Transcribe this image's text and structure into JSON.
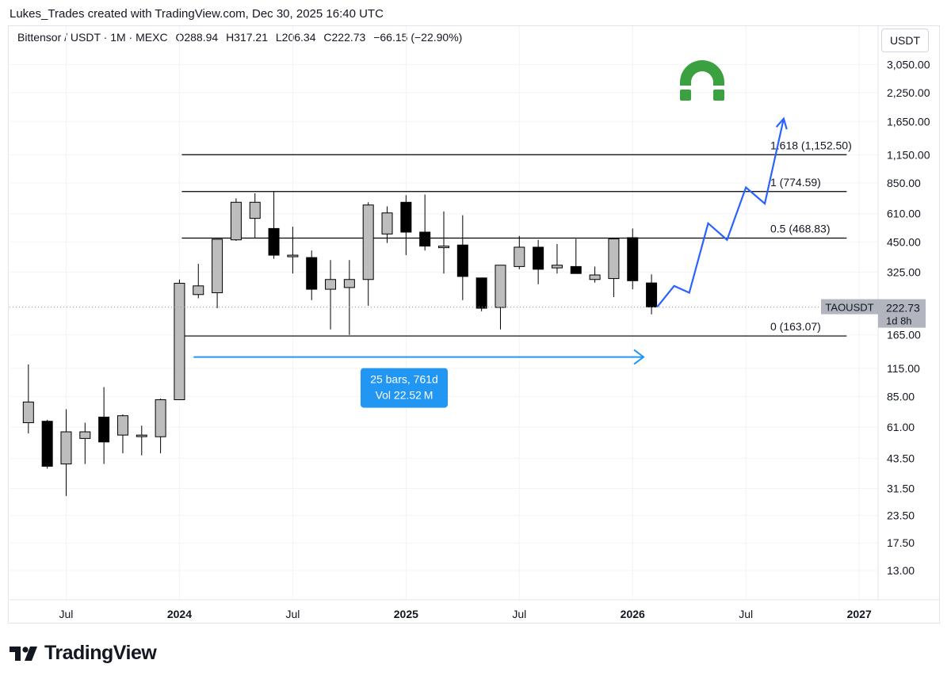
{
  "header": {
    "caption": "Lukes_Trades created with TradingView.com, Dec 30, 2025 16:40 UTC"
  },
  "legend": {
    "symbol": "Bittensor / USDT · 1M · MEXC",
    "open": "O288.94",
    "high": "H317.21",
    "low": "L206.34",
    "close": "C222.73",
    "change": "−66.15 (−22.90%)"
  },
  "currency": "USDT",
  "footer": {
    "brand": "TradingView"
  },
  "colors": {
    "bull_body": "#bdbdbd",
    "bear_body": "#000000",
    "projection": "#2962ff",
    "measure": "#2196f3",
    "logo_green": "#3aa040"
  },
  "chart_data": {
    "type": "candlestick",
    "y_scale": "log",
    "ylim": [
      10.5,
      3600
    ],
    "y_ticks": [
      "3,050.00",
      "2,250.00",
      "1,650.00",
      "1,150.00",
      "850.00",
      "610.00",
      "450.00",
      "325.00",
      "165.00",
      "115.00",
      "85.00",
      "61.00",
      "43.50",
      "31.50",
      "23.50",
      "17.50",
      "13.00"
    ],
    "y_tick_values": [
      3050,
      2250,
      1650,
      1150,
      850,
      610,
      450,
      325,
      165,
      115,
      85,
      61,
      43.5,
      31.5,
      23.5,
      17.5,
      13
    ],
    "x_start_month": "2023-04",
    "x_end_month": "2027-02",
    "x_ticks": [
      {
        "label": "Jul",
        "month": "2023-07",
        "bold": false
      },
      {
        "label": "2024",
        "month": "2024-01",
        "bold": true
      },
      {
        "label": "Jul",
        "month": "2024-07",
        "bold": false
      },
      {
        "label": "2025",
        "month": "2025-01",
        "bold": true
      },
      {
        "label": "Jul",
        "month": "2025-07",
        "bold": false
      },
      {
        "label": "2026",
        "month": "2026-01",
        "bold": true
      },
      {
        "label": "Jul",
        "month": "2026-07",
        "bold": false
      },
      {
        "label": "2027",
        "month": "2027-01",
        "bold": true
      }
    ],
    "candles": [
      {
        "month": "2023-05",
        "o": 64,
        "h": 120,
        "l": 57,
        "c": 80
      },
      {
        "month": "2023-06",
        "o": 65,
        "h": 66,
        "l": 39,
        "c": 40
      },
      {
        "month": "2023-07",
        "o": 41,
        "h": 74,
        "l": 29,
        "c": 58
      },
      {
        "month": "2023-08",
        "o": 54,
        "h": 64,
        "l": 41,
        "c": 58
      },
      {
        "month": "2023-09",
        "o": 68,
        "h": 94,
        "l": 41,
        "c": 52
      },
      {
        "month": "2023-10",
        "o": 56,
        "h": 70,
        "l": 46,
        "c": 69
      },
      {
        "month": "2023-11",
        "o": 56,
        "h": 62,
        "l": 45,
        "c": 56
      },
      {
        "month": "2023-12",
        "o": 55,
        "h": 83,
        "l": 46,
        "c": 82
      },
      {
        "month": "2024-01",
        "o": 82,
        "h": 300,
        "l": 82,
        "c": 288
      },
      {
        "month": "2024-02",
        "o": 255,
        "h": 355,
        "l": 245,
        "c": 280
      },
      {
        "month": "2024-03",
        "o": 260,
        "h": 465,
        "l": 220,
        "c": 463
      },
      {
        "month": "2024-04",
        "o": 460,
        "h": 720,
        "l": 455,
        "c": 690
      },
      {
        "month": "2024-05",
        "o": 580,
        "h": 760,
        "l": 470,
        "c": 690
      },
      {
        "month": "2024-06",
        "o": 520,
        "h": 780,
        "l": 375,
        "c": 390
      },
      {
        "month": "2024-07",
        "o": 390,
        "h": 530,
        "l": 320,
        "c": 390
      },
      {
        "month": "2024-08",
        "o": 380,
        "h": 410,
        "l": 240,
        "c": 270
      },
      {
        "month": "2024-09",
        "o": 270,
        "h": 370,
        "l": 175,
        "c": 300
      },
      {
        "month": "2024-10",
        "o": 275,
        "h": 370,
        "l": 165,
        "c": 300
      },
      {
        "month": "2024-11",
        "o": 300,
        "h": 690,
        "l": 226,
        "c": 670
      },
      {
        "month": "2024-12",
        "o": 490,
        "h": 660,
        "l": 445,
        "c": 615
      },
      {
        "month": "2025-01",
        "o": 690,
        "h": 745,
        "l": 390,
        "c": 500
      },
      {
        "month": "2025-02",
        "o": 500,
        "h": 750,
        "l": 410,
        "c": 430
      },
      {
        "month": "2025-03",
        "o": 425,
        "h": 625,
        "l": 320,
        "c": 430
      },
      {
        "month": "2025-04",
        "o": 435,
        "h": 600,
        "l": 240,
        "c": 310
      },
      {
        "month": "2025-05",
        "o": 305,
        "h": 306,
        "l": 213,
        "c": 220
      },
      {
        "month": "2025-06",
        "o": 222,
        "h": 350,
        "l": 175,
        "c": 350
      },
      {
        "month": "2025-07",
        "o": 345,
        "h": 480,
        "l": 335,
        "c": 425
      },
      {
        "month": "2025-08",
        "o": 425,
        "h": 460,
        "l": 285,
        "c": 335
      },
      {
        "month": "2025-09",
        "o": 340,
        "h": 440,
        "l": 320,
        "c": 350
      },
      {
        "month": "2025-10",
        "o": 345,
        "h": 465,
        "l": 320,
        "c": 320
      },
      {
        "month": "2025-11",
        "o": 300,
        "h": 345,
        "l": 290,
        "c": 315
      },
      {
        "month": "2025-12",
        "o": 303,
        "h": 470,
        "l": 248,
        "c": 465
      },
      {
        "month": "2026-01",
        "o": 471,
        "h": 520,
        "l": 270,
        "c": 296
      },
      {
        "month": "2026-02",
        "o": 289,
        "h": 317,
        "l": 206,
        "c": 223
      }
    ],
    "fib_levels": [
      {
        "label": "1.618 (1,152.50)",
        "value": 1152.5
      },
      {
        "label": "1 (774.59)",
        "value": 774.59
      },
      {
        "label": "0.5 (468.83)",
        "value": 468.83
      },
      {
        "label": "0 (163.07)",
        "value": 163.07
      }
    ],
    "fib_start_month": "2024-01",
    "fib_end_month": "2026-12",
    "measure": {
      "start_month": "2024-02",
      "end_month": "2026-02",
      "value": 130,
      "line1": "25 bars, 761d",
      "line2": "Vol 22.52 M"
    },
    "projection_path": [
      {
        "month": "2026-02.3",
        "value": 223
      },
      {
        "month": "2026-03.2",
        "value": 280
      },
      {
        "month": "2026-04",
        "value": 260
      },
      {
        "month": "2026-05",
        "value": 550
      },
      {
        "month": "2026-06",
        "value": 460
      },
      {
        "month": "2026-07",
        "value": 810
      },
      {
        "month": "2026-08",
        "value": 680
      },
      {
        "month": "2026-09",
        "value": 1700
      }
    ],
    "price_label": {
      "ticker": "TAOUSDT",
      "value": "222.73",
      "countdown": "1d 8h",
      "price": 222.73
    }
  }
}
